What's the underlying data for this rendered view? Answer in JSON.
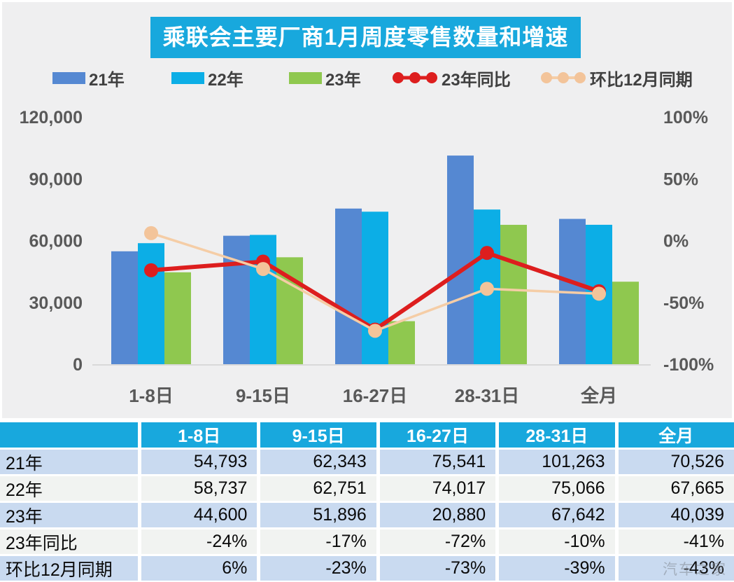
{
  "title": "乘联会主要厂商1月周度零售数量和增速",
  "watermark": "汽车之家",
  "legend": {
    "items": [
      {
        "label": "21年",
        "type": "bar",
        "color": "#5588d2"
      },
      {
        "label": "22年",
        "type": "bar",
        "color": "#0caee6"
      },
      {
        "label": "23年",
        "type": "bar",
        "color": "#8fc84f"
      },
      {
        "label": "23年同比",
        "type": "line",
        "color": "#dd1e1e",
        "marker": "#dd1e1e"
      },
      {
        "label": "环比12月同期",
        "type": "line",
        "color": "#f5cda6",
        "marker": "#f3c49a"
      }
    ]
  },
  "chart_data": {
    "type": "combo-bar-line",
    "title": "乘联会主要厂商1月周度零售数量和增速",
    "categories": [
      "1-8日",
      "9-15日",
      "16-27日",
      "28-31日",
      "全月"
    ],
    "bar_series": [
      {
        "name": "21年",
        "color": "#5588d2",
        "values": [
          54793,
          62343,
          75541,
          101263,
          70526
        ]
      },
      {
        "name": "22年",
        "color": "#0caee6",
        "values": [
          58737,
          62751,
          74017,
          75066,
          67665
        ]
      },
      {
        "name": "23年",
        "color": "#8fc84f",
        "values": [
          44600,
          51896,
          20880,
          67642,
          40039
        ]
      }
    ],
    "line_series": [
      {
        "name": "23年同比",
        "color": "#dd1e1e",
        "marker": "#dd1e1e",
        "values": [
          -24,
          -17,
          -72,
          -10,
          -41
        ]
      },
      {
        "name": "环比12月同期",
        "color": "#f5cda6",
        "marker": "#f3c49a",
        "values": [
          6,
          -23,
          -73,
          -39,
          -43
        ]
      }
    ],
    "left_axis": {
      "min": 0,
      "max": 120000,
      "ticks": [
        "0",
        "30,000",
        "60,000",
        "90,000",
        "120,000"
      ]
    },
    "right_axis": {
      "min": -100,
      "max": 100,
      "ticks": [
        "-100%",
        "-50%",
        "0%",
        "50%",
        "100%"
      ]
    },
    "grid": false,
    "legend_position": "top"
  },
  "table": {
    "header": [
      "",
      "1-8日",
      "9-15日",
      "16-27日",
      "28-31日",
      "全月"
    ],
    "rows": [
      {
        "label": "21年",
        "values": [
          "54,793",
          "62,343",
          "75,541",
          "101,263",
          "70,526"
        ]
      },
      {
        "label": "22年",
        "values": [
          "58,737",
          "62,751",
          "74,017",
          "75,066",
          "67,665"
        ]
      },
      {
        "label": "23年",
        "values": [
          "44,600",
          "51,896",
          "20,880",
          "67,642",
          "40,039"
        ]
      },
      {
        "label": "23年同比",
        "values": [
          "-24%",
          "-17%",
          "-72%",
          "-10%",
          "-41%"
        ]
      },
      {
        "label": "环比12月同期",
        "values": [
          "6%",
          "-23%",
          "-73%",
          "-39%",
          "-43%"
        ]
      }
    ]
  },
  "colors": {
    "panel_bg": "#efeff0",
    "title_bg": "#18a8dd",
    "axis_text": "#595959",
    "table_header_bg": "#18a8dd",
    "table_row_blue": "#c9daf0",
    "table_row_gray": "#f1f3f1",
    "baseline": "#d9d9d9"
  }
}
